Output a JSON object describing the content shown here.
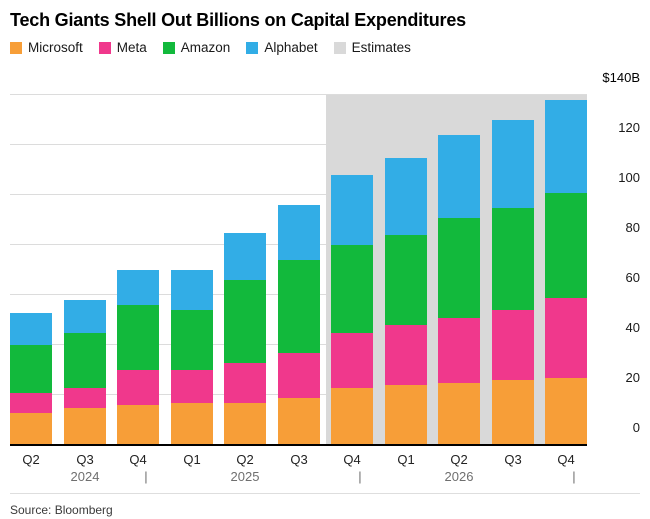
{
  "title": "Tech Giants Shell Out Billions on Capital Expenditures",
  "legend": [
    {
      "label": "Microsoft",
      "color": "#F79E38"
    },
    {
      "label": "Meta",
      "color": "#F0388C"
    },
    {
      "label": "Amazon",
      "color": "#12B93C"
    },
    {
      "label": "Alphabet",
      "color": "#32ADE6"
    },
    {
      "label": "Estimates",
      "color": "#D9D9D9"
    }
  ],
  "source": "Source: Bloomberg",
  "chart_data": {
    "type": "bar",
    "stacked": true,
    "title": "Tech Giants Shell Out Billions on Capital Expenditures",
    "categories": [
      "Q2",
      "Q3",
      "Q4",
      "Q1",
      "Q2",
      "Q3",
      "Q4",
      "Q1",
      "Q2",
      "Q3",
      "Q4"
    ],
    "years": [
      {
        "label": "2024",
        "center_index": 1,
        "end_index": 2
      },
      {
        "label": "2025",
        "center_index": 4,
        "end_index": 6
      },
      {
        "label": "2026",
        "center_index": 8,
        "end_index": 10
      }
    ],
    "series": [
      {
        "name": "Microsoft",
        "color": "#F79E38",
        "values": [
          13,
          15,
          16,
          17,
          17,
          19,
          23,
          24,
          25,
          26,
          27
        ]
      },
      {
        "name": "Meta",
        "color": "#F0388C",
        "values": [
          8,
          8,
          14,
          13,
          16,
          18,
          22,
          24,
          26,
          28,
          32
        ]
      },
      {
        "name": "Amazon",
        "color": "#12B93C",
        "values": [
          19,
          22,
          26,
          24,
          33,
          37,
          35,
          36,
          40,
          41,
          42
        ]
      },
      {
        "name": "Alphabet",
        "color": "#32ADE6",
        "values": [
          13,
          13,
          14,
          16,
          19,
          22,
          28,
          31,
          33,
          35,
          37
        ]
      }
    ],
    "estimates_start_index": 6,
    "estimates_label": "Estimates",
    "estimates_color": "#D9D9D9",
    "y_axis": {
      "ticks": [
        0,
        20,
        40,
        60,
        80,
        100,
        120
      ],
      "top_label": "$140B",
      "max": 140
    },
    "ylim": [
      0,
      140
    ],
    "grid": true,
    "legend_position": "top",
    "unit": "billions USD"
  }
}
